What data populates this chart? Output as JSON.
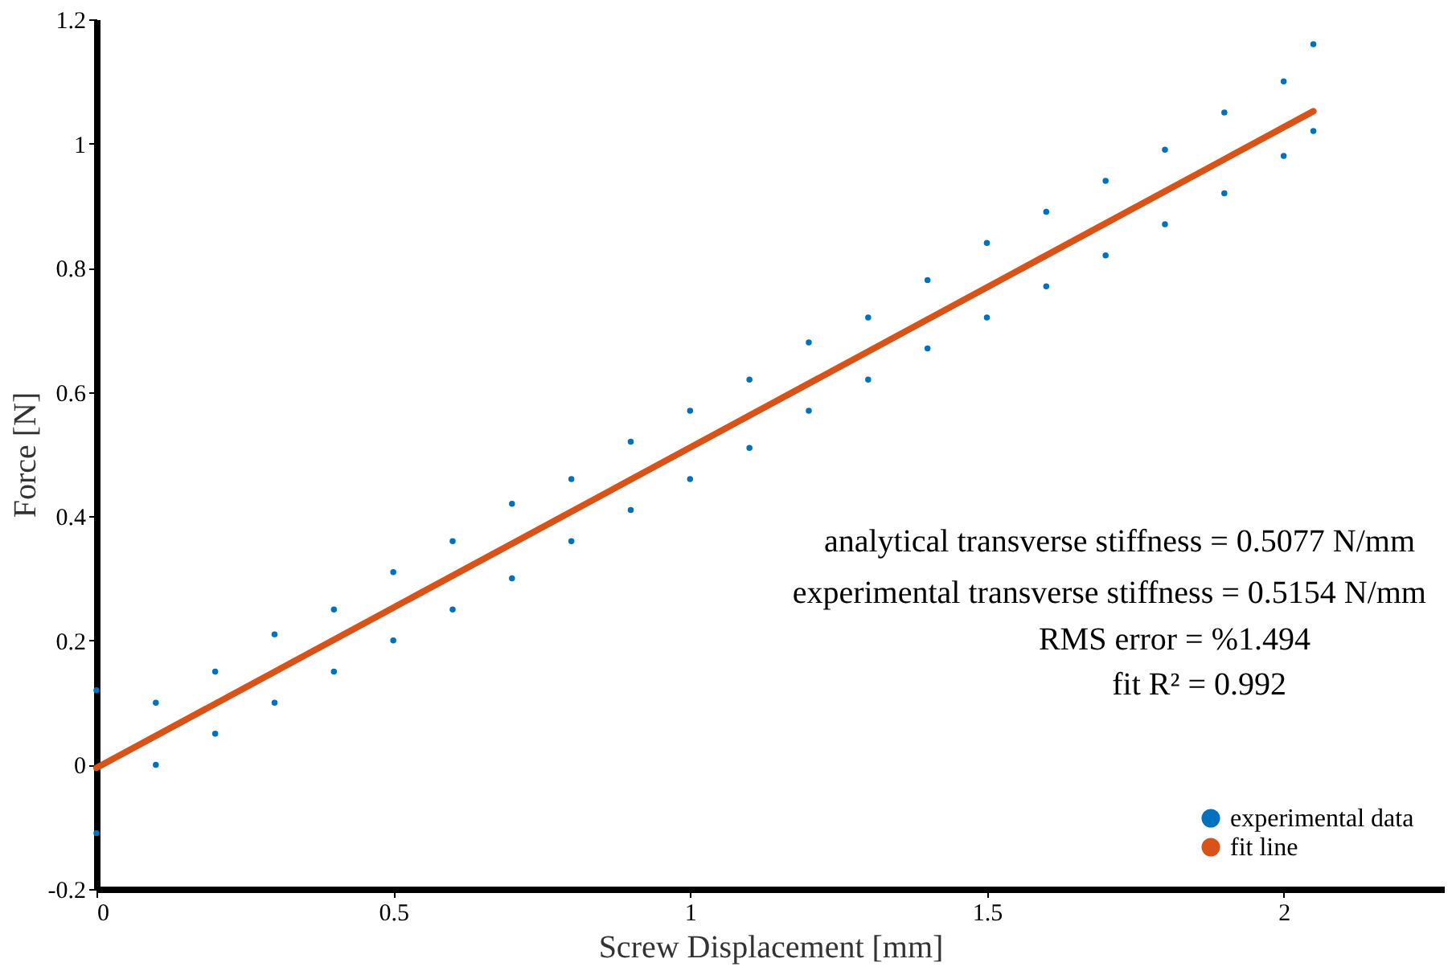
{
  "chart_data": {
    "type": "scatter",
    "xlabel": "Screw Displacement [mm]",
    "ylabel": "Force [N]",
    "xlim": [
      0,
      2.27
    ],
    "ylim": [
      -0.2,
      1.2
    ],
    "xticks": [
      0,
      0.5,
      1,
      1.5,
      2
    ],
    "yticks": [
      -0.2,
      0,
      0.2,
      0.4,
      0.6,
      0.8,
      1,
      1.2
    ],
    "grid": false,
    "legend": "bottom right",
    "series": [
      {
        "name": "experimental data",
        "marker": "circle",
        "color": "#0072bd",
        "x": [
          0,
          0,
          0.1,
          0.1,
          0.2,
          0.2,
          0.3,
          0.3,
          0.4,
          0.4,
          0.5,
          0.5,
          0.6,
          0.6,
          0.7,
          0.7,
          0.8,
          0.8,
          0.9,
          0.9,
          1.0,
          1.0,
          1.1,
          1.1,
          1.2,
          1.2,
          1.3,
          1.3,
          1.4,
          1.4,
          1.5,
          1.5,
          1.6,
          1.6,
          1.7,
          1.7,
          1.8,
          1.8,
          1.9,
          1.9,
          2.0,
          2.0,
          2.05,
          2.05
        ],
        "values": [
          -0.11,
          0.12,
          0.0,
          0.1,
          0.05,
          0.15,
          0.1,
          0.21,
          0.15,
          0.25,
          0.2,
          0.31,
          0.25,
          0.36,
          0.3,
          0.42,
          0.36,
          0.46,
          0.41,
          0.52,
          0.46,
          0.57,
          0.51,
          0.62,
          0.57,
          0.68,
          0.62,
          0.72,
          0.67,
          0.78,
          0.72,
          0.84,
          0.77,
          0.89,
          0.82,
          0.94,
          0.87,
          0.99,
          0.92,
          1.05,
          0.98,
          1.1,
          1.02,
          1.16
        ]
      },
      {
        "name": "fit line",
        "type": "line",
        "color": "#d95319",
        "x": [
          0,
          2.05
        ],
        "values": [
          -0.005,
          1.052
        ]
      }
    ],
    "annotations": [
      "analytical transverse stiffness = 0.5077 N/mm",
      "experimental transverse stiffness = 0.5154 N/mm",
      "RMS error = %1.494",
      "fit R² = 0.992"
    ]
  }
}
